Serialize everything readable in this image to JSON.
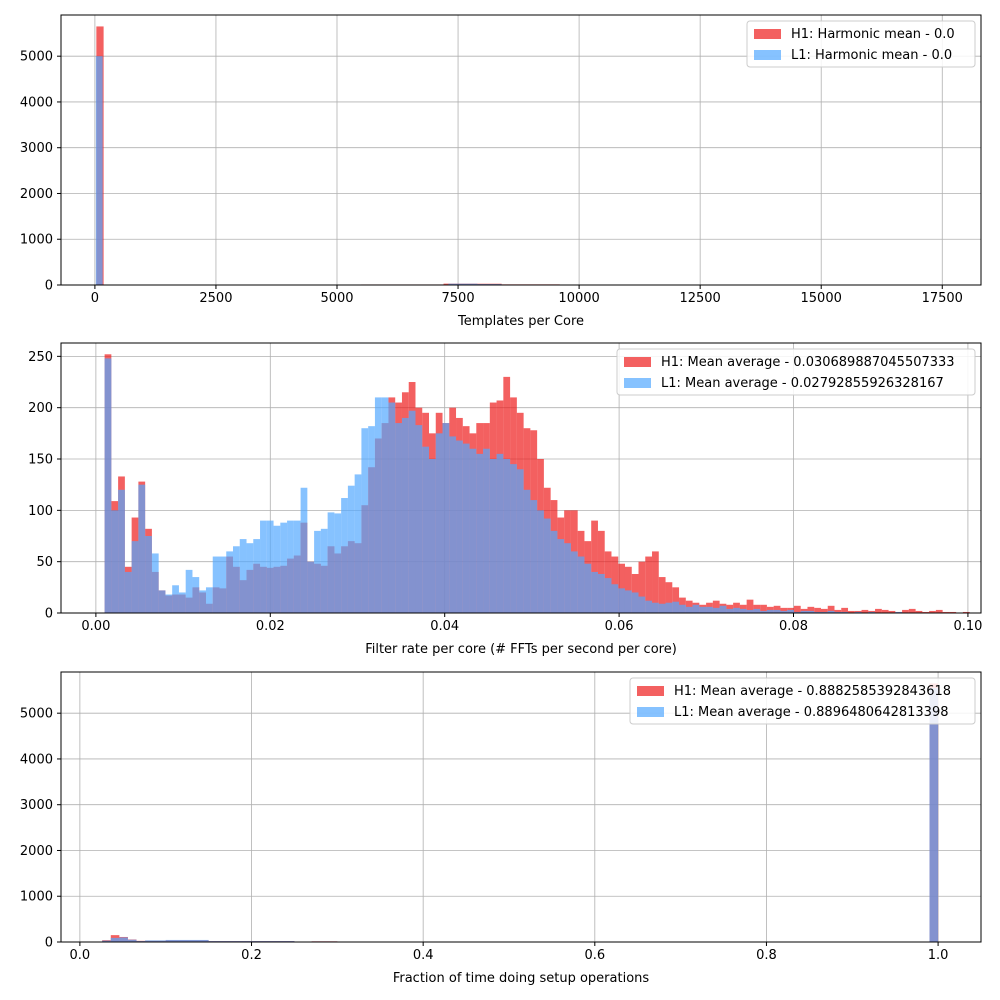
{
  "colors": {
    "h1": "#ee1c1c",
    "l1": "#53a8ff",
    "grid": "#b0b0b0",
    "axis": "#000000"
  },
  "chart_data": [
    {
      "type": "bar",
      "xlabel": "Templates per Core",
      "xlim": [
        -700,
        18300
      ],
      "ylim": [
        0,
        5900
      ],
      "xticks": [
        0,
        2500,
        5000,
        7500,
        10000,
        12500,
        15000,
        17500
      ],
      "xtick_labels": [
        "0",
        "2500",
        "5000",
        "7500",
        "10000",
        "12500",
        "15000",
        "17500"
      ],
      "yticks": [
        0,
        1000,
        2000,
        3000,
        4000,
        5000
      ],
      "ytick_labels": [
        "0",
        "1000",
        "2000",
        "3000",
        "4000",
        "5000"
      ],
      "grid": true,
      "legend_position": "top-right",
      "series": [
        {
          "name": "H1: Harmonic mean  - 0.0",
          "color_key": "h1",
          "bins": [
            [
              30,
              180,
              5650
            ],
            [
              5500,
              7200,
              12
            ],
            [
              7200,
              7900,
              30
            ],
            [
              7900,
              8400,
              28
            ],
            [
              8400,
              9600,
              14
            ],
            [
              10200,
              10400,
              10
            ]
          ]
        },
        {
          "name": "L1: Harmonic mean  - 0.0",
          "color_key": "l1",
          "bins": [
            [
              20,
              160,
              5000
            ],
            [
              5600,
              7300,
              10
            ],
            [
              7300,
              7900,
              28
            ],
            [
              7900,
              8400,
              20
            ],
            [
              8400,
              9200,
              10
            ]
          ]
        }
      ]
    },
    {
      "type": "bar",
      "xlabel": "Filter rate per core (# FFTs per second per core)",
      "xlim": [
        -0.004,
        0.1015
      ],
      "ylim": [
        0,
        263
      ],
      "xticks": [
        0.0,
        0.02,
        0.04,
        0.06,
        0.08,
        0.1
      ],
      "xtick_labels": [
        "0.00",
        "0.02",
        "0.04",
        "0.06",
        "0.08",
        "0.10"
      ],
      "yticks": [
        0,
        50,
        100,
        150,
        200,
        250
      ],
      "ytick_labels": [
        "0",
        "50",
        "100",
        "150",
        "200",
        "250"
      ],
      "grid": true,
      "legend_position": "top-right",
      "series": [
        {
          "name": "H1: Mean average - 0.030689887045507333",
          "color_key": "h1",
          "x_start": 0.001,
          "bin_width": 0.000775,
          "values": [
            252,
            109,
            133,
            45,
            93,
            128,
            82,
            40,
            22,
            17,
            18,
            18,
            15,
            25,
            20,
            9,
            25,
            24,
            55,
            45,
            32,
            42,
            48,
            45,
            44,
            45,
            46,
            53,
            56,
            88,
            50,
            48,
            46,
            65,
            58,
            65,
            70,
            68,
            105,
            142,
            170,
            185,
            210,
            205,
            215,
            225,
            200,
            195,
            175,
            195,
            185,
            200,
            190,
            182,
            175,
            185,
            185,
            205,
            207,
            230,
            210,
            195,
            180,
            178,
            150,
            122,
            110,
            93,
            100,
            100,
            80,
            70,
            90,
            80,
            60,
            55,
            48,
            45,
            38,
            50,
            55,
            60,
            35,
            30,
            25,
            15,
            12,
            10,
            8,
            10,
            12,
            9,
            8,
            10,
            8,
            13,
            8,
            8,
            6,
            7,
            5,
            5,
            7,
            4,
            6,
            5,
            4,
            7,
            3,
            5,
            2,
            2,
            3,
            2,
            4,
            3,
            2,
            1,
            3,
            4,
            2,
            1,
            2,
            3,
            1,
            1,
            0,
            1,
            0,
            0,
            0,
            0,
            0,
            0,
            0,
            0,
            0,
            0,
            0,
            0,
            0,
            0,
            0,
            0,
            0,
            0,
            0,
            0,
            0,
            0
          ]
        },
        {
          "name": "L1: Mean average - 0.02792855926328167",
          "color_key": "l1",
          "x_start": 0.001,
          "bin_width": 0.000775,
          "values": [
            248,
            100,
            120,
            40,
            70,
            125,
            75,
            58,
            22,
            18,
            27,
            20,
            42,
            35,
            22,
            25,
            55,
            55,
            60,
            65,
            72,
            68,
            72,
            90,
            90,
            85,
            88,
            90,
            90,
            122,
            50,
            80,
            82,
            98,
            97,
            112,
            124,
            135,
            180,
            182,
            210,
            210,
            205,
            185,
            190,
            197,
            183,
            162,
            150,
            175,
            185,
            172,
            168,
            165,
            160,
            155,
            160,
            150,
            155,
            150,
            145,
            140,
            120,
            110,
            100,
            92,
            80,
            72,
            68,
            60,
            55,
            48,
            40,
            38,
            34,
            28,
            24,
            22,
            20,
            16,
            12,
            10,
            9,
            10,
            11,
            8,
            6,
            8,
            6,
            6,
            5,
            7,
            4,
            5,
            4,
            3,
            4,
            2,
            3,
            3,
            2,
            3,
            1,
            2,
            2,
            1,
            1,
            2,
            1,
            1,
            0,
            1,
            0,
            1,
            0,
            0,
            0,
            1,
            0,
            0,
            0,
            0,
            0,
            0,
            0,
            0,
            0,
            0,
            0,
            0,
            0,
            0,
            0,
            0,
            0,
            0,
            0,
            0,
            0,
            0,
            0,
            0,
            0,
            0,
            0,
            0
          ]
        }
      ]
    },
    {
      "type": "bar",
      "xlabel": "Fraction of time doing setup operations",
      "xlim": [
        -0.022,
        1.05
      ],
      "ylim": [
        0,
        5900
      ],
      "xticks": [
        0.0,
        0.2,
        0.4,
        0.6,
        0.8,
        1.0
      ],
      "xtick_labels": [
        "0.0",
        "0.2",
        "0.4",
        "0.6",
        "0.8",
        "1.0"
      ],
      "yticks": [
        0,
        1000,
        2000,
        3000,
        4000,
        5000
      ],
      "ytick_labels": [
        "0",
        "1000",
        "2000",
        "3000",
        "4000",
        "5000"
      ],
      "grid": true,
      "legend_position": "top-right",
      "series": [
        {
          "name": "H1: Mean average - 0.8882585392843618",
          "color_key": "h1",
          "bins": [
            [
              0.026,
              0.036,
              40
            ],
            [
              0.036,
              0.046,
              150
            ],
            [
              0.046,
              0.056,
              110
            ],
            [
              0.056,
              0.066,
              55
            ],
            [
              0.066,
              0.076,
              25
            ],
            [
              0.076,
              0.1,
              30
            ],
            [
              0.1,
              0.15,
              40
            ],
            [
              0.15,
              0.25,
              20
            ],
            [
              0.27,
              0.3,
              15
            ],
            [
              0.99,
              1.0,
              5650
            ]
          ]
        },
        {
          "name": "L1: Mean average - 0.8896480642813398",
          "color_key": "l1",
          "bins": [
            [
              0.026,
              0.036,
              30
            ],
            [
              0.036,
              0.046,
              90
            ],
            [
              0.046,
              0.056,
              100
            ],
            [
              0.056,
              0.066,
              50
            ],
            [
              0.066,
              0.076,
              20
            ],
            [
              0.076,
              0.1,
              35
            ],
            [
              0.1,
              0.15,
              45
            ],
            [
              0.15,
              0.25,
              20
            ],
            [
              0.27,
              0.3,
              12
            ],
            [
              0.99,
              1.0,
              5550
            ]
          ]
        }
      ]
    }
  ]
}
